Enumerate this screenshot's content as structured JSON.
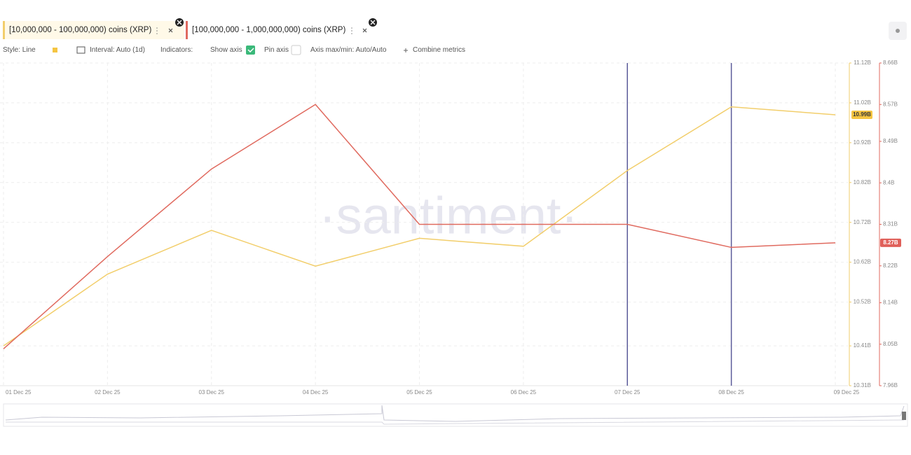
{
  "toolbar": {
    "style": "Style: Line",
    "interval": "Interval: Auto (1d)",
    "indicators": "Indicators:",
    "show_axis": "Show axis",
    "pin_axis": "Pin axis",
    "axis_maxmin": "Axis max/min: Auto/Auto",
    "combine": "Combine metrics"
  },
  "chart_data": {
    "type": "line",
    "watermark": "·santiment·",
    "categories": [
      "01 Dec 25",
      "02 Dec 25",
      "03 Dec 25",
      "04 Dec 25",
      "05 Dec 25",
      "06 Dec 25",
      "07 Dec 25",
      "08 Dec 25",
      "09 Dec 25"
    ],
    "series": [
      {
        "name": "[10,000,000 - 100,000,000) coins (XRP)",
        "color": "#f2ce6b",
        "axis": "y",
        "values": [
          10.41,
          10.59,
          10.7,
          10.61,
          10.68,
          10.66,
          10.85,
          11.01,
          10.99
        ],
        "value_labels": [
          null,
          null,
          null,
          null,
          null,
          null,
          null,
          null,
          "10.99B"
        ],
        "label_color": "#f5c542"
      },
      {
        "name": "[100,000,000 - 1,000,000,000) coins (XRP)",
        "color": "#e06a5f",
        "axis": "y2",
        "values": [
          8.04,
          8.24,
          8.43,
          8.57,
          8.31,
          8.31,
          8.31,
          8.26,
          8.27
        ],
        "value_labels": [
          null,
          null,
          null,
          null,
          null,
          null,
          null,
          null,
          "8.27B"
        ],
        "label_color": "#e0605a"
      }
    ],
    "ylim": [
      10.31,
      11.12
    ],
    "yticks": [
      {
        "value": 11.12,
        "label": "11.12B"
      },
      {
        "value": 11.02,
        "label": "11.02B"
      },
      {
        "value": 10.92,
        "label": "10.92B"
      },
      {
        "value": 10.82,
        "label": "10.82B"
      },
      {
        "value": 10.72,
        "label": "10.72B"
      },
      {
        "value": 10.62,
        "label": "10.62B"
      },
      {
        "value": 10.52,
        "label": "10.52B"
      },
      {
        "value": 10.41,
        "label": "10.41B"
      },
      {
        "value": 10.31,
        "label": "10.31B"
      }
    ],
    "y2lim": [
      7.96,
      8.66
    ],
    "y2ticks": [
      {
        "value": 8.66,
        "label": "8.66B"
      },
      {
        "value": 8.57,
        "label": "8.57B"
      },
      {
        "value": 8.49,
        "label": "8.49B"
      },
      {
        "value": 8.4,
        "label": "8.4B"
      },
      {
        "value": 8.31,
        "label": "8.31B"
      },
      {
        "value": 8.22,
        "label": "8.22B"
      },
      {
        "value": 8.14,
        "label": "8.14B"
      },
      {
        "value": 8.05,
        "label": "8.05B"
      },
      {
        "value": 7.96,
        "label": "7.96B"
      }
    ],
    "grid": true,
    "vertical_lines_at": [
      "07 Dec 25",
      "08 Dec 25"
    ],
    "vertical_line_color": "#5b5b9a"
  }
}
